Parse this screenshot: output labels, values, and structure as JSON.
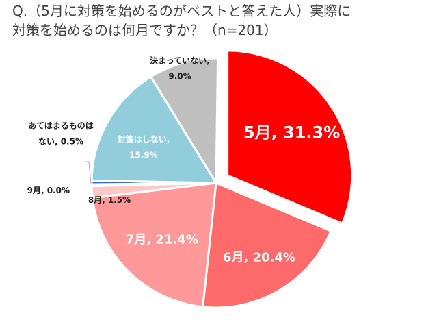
{
  "title": {
    "line1": "Q.（5月に対策を始めるのがベストと答えた人）実際に",
    "line2": "対策を始めるのは何月ですか？（n=201）"
  },
  "chart_data": {
    "type": "pie",
    "n": 201,
    "slices": [
      {
        "label": "5月",
        "value": 31.3,
        "text": "5月, 31.3%",
        "color": "#ff0000",
        "exploded": true
      },
      {
        "label": "6月",
        "value": 20.4,
        "text": "6月, 20.4%",
        "color": "#ff6b6b"
      },
      {
        "label": "7月",
        "value": 21.4,
        "text": "7月, 21.4%",
        "color": "#ff9999"
      },
      {
        "label": "8月",
        "value": 1.5,
        "text": "8月, 1.5%",
        "color": "#ffc8c8"
      },
      {
        "label": "9月",
        "value": 0.0,
        "text": "9月, 0.0%",
        "color": "#4472c4"
      },
      {
        "label": "あてはまるものはない",
        "value": 0.5,
        "text_lines": [
          "あてはまるものは",
          "ない, 0.5%"
        ],
        "color": "#2f6ab4"
      },
      {
        "label": "対策はしない",
        "value": 15.9,
        "text_lines": [
          "対策はしない,",
          "15.9%"
        ],
        "color": "#92cddc"
      },
      {
        "label": "決まっていない",
        "value": 9.0,
        "text_lines": [
          "決まっていない,",
          "9.0%"
        ],
        "color": "#bfbfbf"
      }
    ]
  }
}
